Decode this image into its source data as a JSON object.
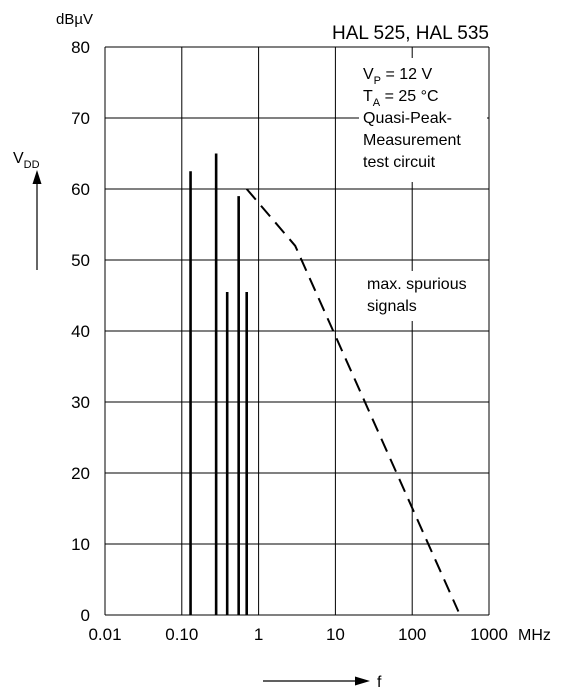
{
  "chart_data": {
    "type": "line",
    "title": "HAL 525, HAL 535",
    "y_unit": "dBµV",
    "x_unit": "MHz",
    "ylabel": {
      "main": "V",
      "sub": "DD"
    },
    "xlabel": "f",
    "x_scale": "log",
    "xlim": [
      0.01,
      1000
    ],
    "ylim": [
      0,
      80
    ],
    "x_ticks": [
      {
        "value": 0.01,
        "label": "0.01"
      },
      {
        "value": 0.1,
        "label": "0.10"
      },
      {
        "value": 1,
        "label": "1"
      },
      {
        "value": 10,
        "label": "10"
      },
      {
        "value": 100,
        "label": "100"
      },
      {
        "value": 1000,
        "label": "1000"
      }
    ],
    "y_ticks": [
      0,
      10,
      20,
      30,
      40,
      50,
      60,
      70,
      80
    ],
    "grid": true,
    "conditions": [
      {
        "main": "V",
        "sub": "P",
        "rest": " = 12 V"
      },
      {
        "main": "T",
        "sub": "A",
        "rest": " = 25 °C"
      },
      {
        "main": "Quasi-Peak-",
        "sub": "",
        "rest": ""
      },
      {
        "main": "Measurement",
        "sub": "",
        "rest": ""
      },
      {
        "main": "test circuit",
        "sub": "",
        "rest": ""
      }
    ],
    "limit_label": [
      "max. spurious",
      "signals"
    ],
    "spurious_signals": [
      {
        "x": 0.13,
        "y": 62.5
      },
      {
        "x": 0.28,
        "y": 65
      },
      {
        "x": 0.39,
        "y": 45.5
      },
      {
        "x": 0.55,
        "y": 59
      },
      {
        "x": 0.7,
        "y": 45.5
      }
    ],
    "limit_line": [
      {
        "x": 0.7,
        "y": 60
      },
      {
        "x": 3,
        "y": 52
      },
      {
        "x": 400,
        "y": 0.5
      }
    ]
  }
}
